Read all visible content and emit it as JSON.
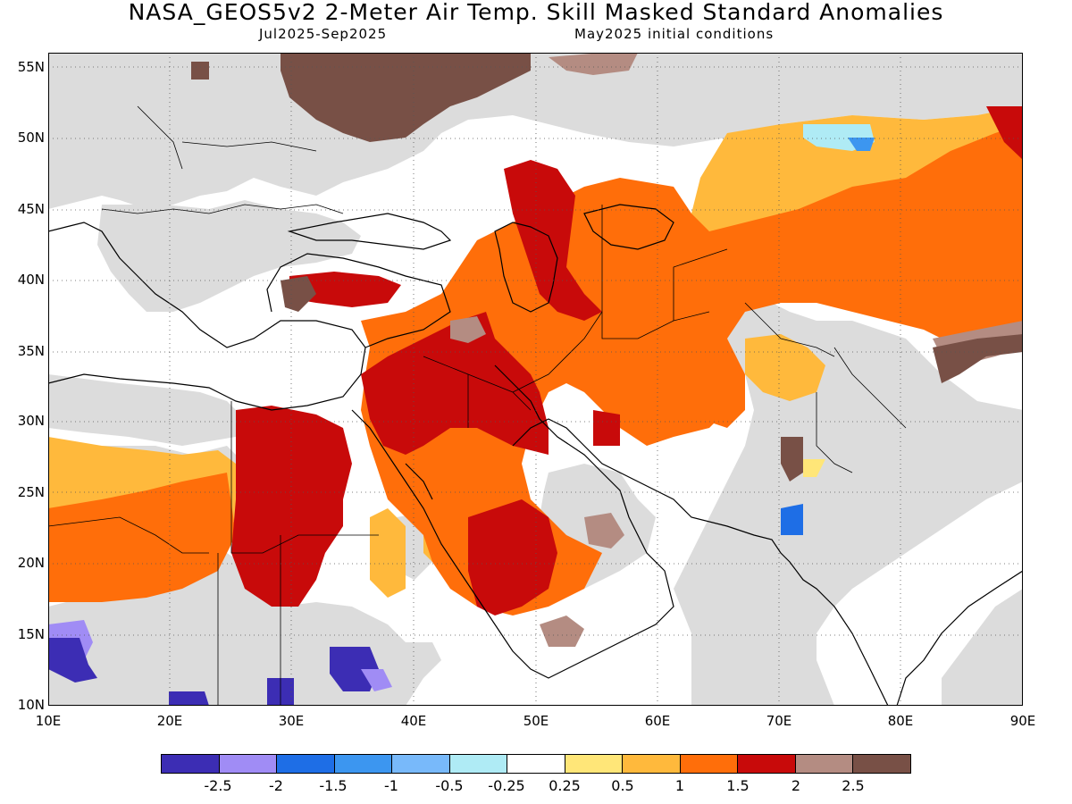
{
  "title": "NASA_GEOS5v2 2-Meter Air Temp. Skill Masked Standard Anomalies",
  "period": "Jul2025-Sep2025",
  "init": "May2025 initial conditions",
  "lat_labels": [
    "55N",
    "50N",
    "45N",
    "40N",
    "35N",
    "30N",
    "25N",
    "20N",
    "15N",
    "10N"
  ],
  "lon_labels": [
    "10E",
    "20E",
    "30E",
    "40E",
    "50E",
    "60E",
    "70E",
    "80E",
    "90E"
  ],
  "colorbar": {
    "colors": [
      "#3c2db4",
      "#a08cf5",
      "#1e6ee6",
      "#3c96f0",
      "#78b9fa",
      "#afebf5",
      "#ffffff",
      "#ffe678",
      "#ffb93c",
      "#ff6e0a",
      "#c80a0a",
      "#b48c82",
      "#785046"
    ],
    "labels": [
      "-2.5",
      "-2",
      "-1.5",
      "-1",
      "-0.5",
      "-0.25",
      "0.25",
      "0.5",
      "1",
      "1.5",
      "2",
      "2.5"
    ]
  },
  "colors": {
    "masked": "#dcdcdc",
    "ocean": "#ffffff",
    "coast": "#000000"
  }
}
